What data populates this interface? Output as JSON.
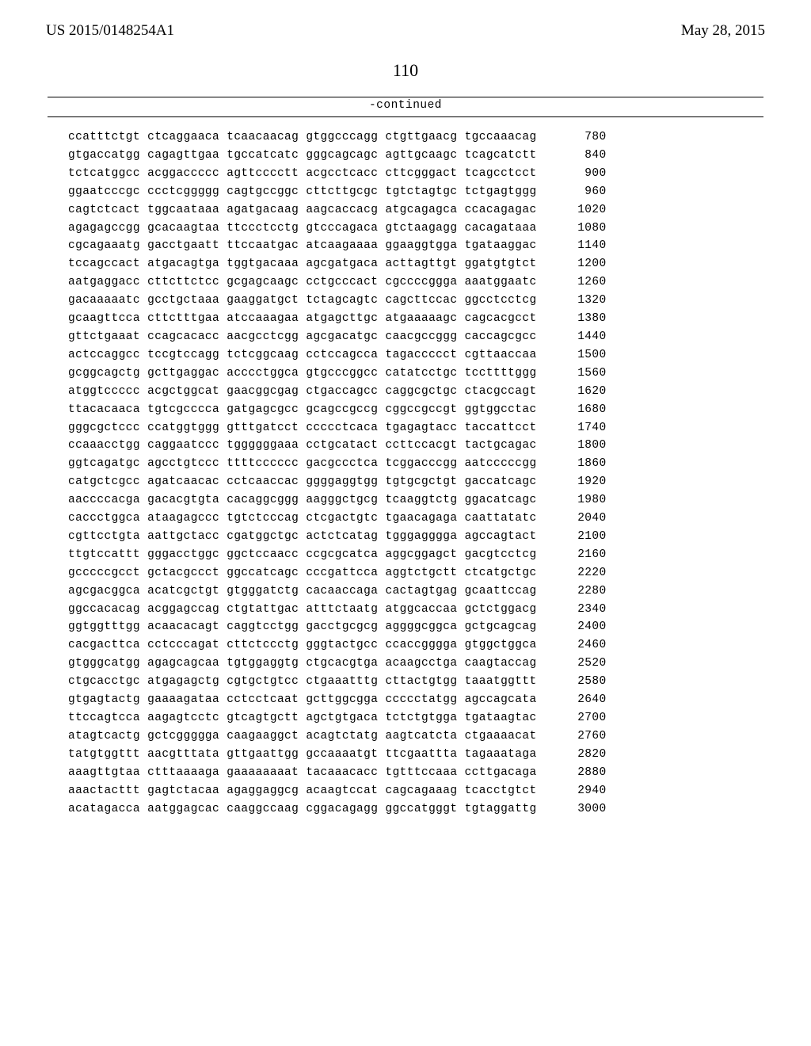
{
  "header": {
    "publication": "US 2015/0148254A1",
    "date": "May 28, 2015"
  },
  "page_number": "110",
  "continued_label": "-continued",
  "sequence": {
    "group_gap": " ",
    "rows": [
      {
        "groups": [
          "ccatttctgt",
          "ctcaggaaca",
          "tcaacaacag",
          "gtggcccagg",
          "ctgttgaacg",
          "tgccaaacag"
        ],
        "pos": 780
      },
      {
        "groups": [
          "gtgaccatgg",
          "cagagttgaa",
          "tgccatcatc",
          "gggcagcagc",
          "agttgcaagc",
          "tcagcatctt"
        ],
        "pos": 840
      },
      {
        "groups": [
          "tctcatggcc",
          "acggaccccc",
          "agttcccctt",
          "acgcctcacc",
          "cttcgggact",
          "tcagcctcct"
        ],
        "pos": 900
      },
      {
        "groups": [
          "ggaatcccgc",
          "ccctcggggg",
          "cagtgccggc",
          "cttcttgcgc",
          "tgtctagtgc",
          "tctgagtggg"
        ],
        "pos": 960
      },
      {
        "groups": [
          "cagtctcact",
          "tggcaataaa",
          "agatgacaag",
          "aagcaccacg",
          "atgcagagca",
          "ccacagagac"
        ],
        "pos": 1020
      },
      {
        "groups": [
          "agagagccgg",
          "gcacaagtaa",
          "ttccctcctg",
          "gtcccagaca",
          "gtctaagagg",
          "cacagataaa"
        ],
        "pos": 1080
      },
      {
        "groups": [
          "cgcagaaatg",
          "gacctgaatt",
          "ttccaatgac",
          "atcaagaaaa",
          "ggaaggtgga",
          "tgataaggac"
        ],
        "pos": 1140
      },
      {
        "groups": [
          "tccagccact",
          "atgacagtga",
          "tggtgacaaa",
          "agcgatgaca",
          "acttagttgt",
          "ggatgtgtct"
        ],
        "pos": 1200
      },
      {
        "groups": [
          "aatgaggacc",
          "cttcttctcc",
          "gcgagcaagc",
          "cctgcccact",
          "cgccccggga",
          "aaatggaatc"
        ],
        "pos": 1260
      },
      {
        "groups": [
          "gacaaaaatc",
          "gcctgctaaa",
          "gaaggatgct",
          "tctagcagtc",
          "cagcttccac",
          "ggcctcctcg"
        ],
        "pos": 1320
      },
      {
        "groups": [
          "gcaagttcca",
          "cttctttgaa",
          "atccaaagaa",
          "atgagcttgc",
          "atgaaaaagc",
          "cagcacgcct"
        ],
        "pos": 1380
      },
      {
        "groups": [
          "gttctgaaat",
          "ccagcacacc",
          "aacgcctcgg",
          "agcgacatgc",
          "caacgccggg",
          "caccagcgcc"
        ],
        "pos": 1440
      },
      {
        "groups": [
          "actccaggcc",
          "tccgtccagg",
          "tctcggcaag",
          "cctccagcca",
          "tagaccccct",
          "cgttaaccaa"
        ],
        "pos": 1500
      },
      {
        "groups": [
          "gcggcagctg",
          "gcttgaggac",
          "acccctggca",
          "gtgcccggcc",
          "catatcctgc",
          "tccttttggg"
        ],
        "pos": 1560
      },
      {
        "groups": [
          "atggtccccc",
          "acgctggcat",
          "gaacggcgag",
          "ctgaccagcc",
          "caggcgctgc",
          "ctacgccagt"
        ],
        "pos": 1620
      },
      {
        "groups": [
          "ttacacaaca",
          "tgtcgcccca",
          "gatgagcgcc",
          "gcagccgccg",
          "cggccgccgt",
          "ggtggcctac"
        ],
        "pos": 1680
      },
      {
        "groups": [
          "gggcgctccc",
          "ccatggtggg",
          "gtttgatcct",
          "ccccctcaca",
          "tgagagtacc",
          "taccattcct"
        ],
        "pos": 1740
      },
      {
        "groups": [
          "ccaaacctgg",
          "caggaatccc",
          "tggggggaaa",
          "cctgcatact",
          "ccttccacgt",
          "tactgcagac"
        ],
        "pos": 1800
      },
      {
        "groups": [
          "ggtcagatgc",
          "agcctgtccc",
          "ttttcccccc",
          "gacgccctca",
          "tcggacccgg",
          "aatcccccgg"
        ],
        "pos": 1860
      },
      {
        "groups": [
          "catgctcgcc",
          "agatcaacac",
          "cctcaaccac",
          "ggggaggtgg",
          "tgtgcgctgt",
          "gaccatcagc"
        ],
        "pos": 1920
      },
      {
        "groups": [
          "aaccccacga",
          "gacacgtgta",
          "cacaggcggg",
          "aagggctgcg",
          "tcaaggtctg",
          "ggacatcagc"
        ],
        "pos": 1980
      },
      {
        "groups": [
          "caccctggca",
          "ataagagccc",
          "tgtctcccag",
          "ctcgactgtc",
          "tgaacagaga",
          "caattatatc"
        ],
        "pos": 2040
      },
      {
        "groups": [
          "cgttcctgta",
          "aattgctacc",
          "cgatggctgc",
          "actctcatag",
          "tgggagggga",
          "agccagtact"
        ],
        "pos": 2100
      },
      {
        "groups": [
          "ttgtccattt",
          "gggacctggc",
          "ggctccaacc",
          "ccgcgcatca",
          "aggcggagct",
          "gacgtcctcg"
        ],
        "pos": 2160
      },
      {
        "groups": [
          "gcccccgcct",
          "gctacgccct",
          "ggccatcagc",
          "cccgattcca",
          "aggtctgctt",
          "ctcatgctgc"
        ],
        "pos": 2220
      },
      {
        "groups": [
          "agcgacggca",
          "acatcgctgt",
          "gtgggatctg",
          "cacaaccaga",
          "cactagtgag",
          "gcaattccag"
        ],
        "pos": 2280
      },
      {
        "groups": [
          "ggccacacag",
          "acggagccag",
          "ctgtattgac",
          "atttctaatg",
          "atggcaccaa",
          "gctctggacg"
        ],
        "pos": 2340
      },
      {
        "groups": [
          "ggtggtttgg",
          "acaacacagt",
          "caggtcctgg",
          "gacctgcgcg",
          "aggggcggca",
          "gctgcagcag"
        ],
        "pos": 2400
      },
      {
        "groups": [
          "cacgacttca",
          "cctcccagat",
          "cttctccctg",
          "gggtactgcc",
          "ccaccgggga",
          "gtggctggca"
        ],
        "pos": 2460
      },
      {
        "groups": [
          "gtgggcatgg",
          "agagcagcaa",
          "tgtggaggtg",
          "ctgcacgtga",
          "acaagcctga",
          "caagtaccag"
        ],
        "pos": 2520
      },
      {
        "groups": [
          "ctgcacctgc",
          "atgagagctg",
          "cgtgctgtcc",
          "ctgaaatttg",
          "cttactgtgg",
          "taaatggttt"
        ],
        "pos": 2580
      },
      {
        "groups": [
          "gtgagtactg",
          "gaaaagataa",
          "cctcctcaat",
          "gcttggcgga",
          "ccccctatgg",
          "agccagcata"
        ],
        "pos": 2640
      },
      {
        "groups": [
          "ttccagtcca",
          "aagagtcctc",
          "gtcagtgctt",
          "agctgtgaca",
          "tctctgtgga",
          "tgataagtac"
        ],
        "pos": 2700
      },
      {
        "groups": [
          "atagtcactg",
          "gctcggggga",
          "caagaaggct",
          "acagtctatg",
          "aagtcatcta",
          "ctgaaaacat"
        ],
        "pos": 2760
      },
      {
        "groups": [
          "tatgtggttt",
          "aacgtttata",
          "gttgaattgg",
          "gccaaaatgt",
          "ttcgaattta",
          "tagaaataga"
        ],
        "pos": 2820
      },
      {
        "groups": [
          "aaagttgtaa",
          "ctttaaaaga",
          "gaaaaaaaat",
          "tacaaacacc",
          "tgtttccaaa",
          "ccttgacaga"
        ],
        "pos": 2880
      },
      {
        "groups": [
          "aaactacttt",
          "gagtctacaa",
          "agaggaggcg",
          "acaagtccat",
          "cagcagaaag",
          "tcacctgtct"
        ],
        "pos": 2940
      },
      {
        "groups": [
          "acatagacca",
          "aatggagcac",
          "caaggccaag",
          "cggacagagg",
          "ggccatgggt",
          "tgtaggattg"
        ],
        "pos": 3000
      }
    ]
  }
}
